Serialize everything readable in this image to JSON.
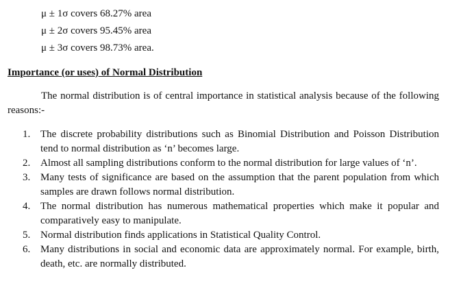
{
  "coverage": [
    "μ ± 1σ covers 68.27% area",
    "μ ± 2σ covers 95.45% area",
    "μ ± 3σ covers 98.73% area."
  ],
  "heading": "Importance (or uses) of Normal Distribution",
  "intro": "The normal distribution is of central importance in statistical analysis because of the following reasons:-",
  "reasons": [
    {
      "num": "1.",
      "text": "The discrete probability distributions such as Binomial Distribution and Poisson Distribution tend to normal distribution as ‘n’ becomes large."
    },
    {
      "num": "2.",
      "text": "Almost all sampling distributions conform to the normal distribution for large values of ‘n’."
    },
    {
      "num": "3.",
      "text": "Many tests of significance are based on the assumption that the parent population from which samples are drawn follows normal distribution."
    },
    {
      "num": "4.",
      "text": "The normal distribution has numerous mathematical properties which make it popular and comparatively easy to manipulate."
    },
    {
      "num": "5.",
      "text": "Normal distribution finds applications in Statistical Quality Control."
    },
    {
      "num": "6.",
      "text": "Many distributions in social and economic data are approximately normal.  For example, birth, death, etc. are normally distributed."
    }
  ]
}
